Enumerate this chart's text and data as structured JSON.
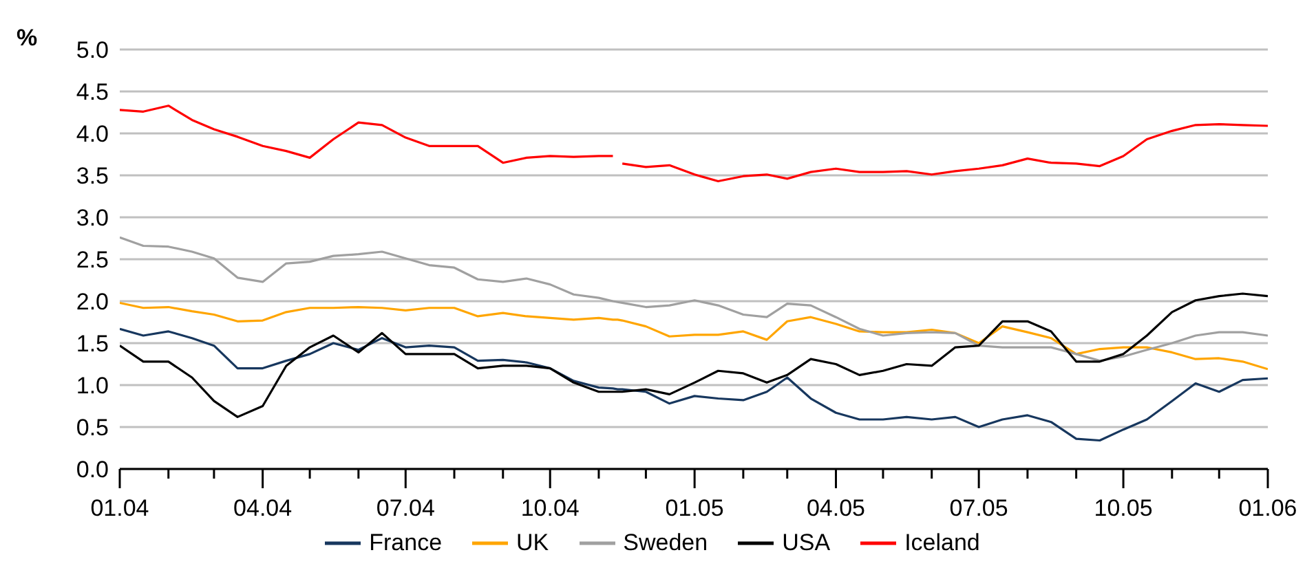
{
  "chart_data": {
    "type": "line",
    "ylabel": "%",
    "legend": "bottom",
    "grid": "y",
    "marker": "none",
    "line_style": "solid",
    "x": [
      "2004-01-01",
      "2004-01-16",
      "2004-02-01",
      "2004-02-16",
      "2004-03-01",
      "2004-03-16",
      "2004-04-01",
      "2004-04-16",
      "2004-05-01",
      "2004-05-16",
      "2004-06-01",
      "2004-06-16",
      "2004-07-01",
      "2004-07-16",
      "2004-08-01",
      "2004-08-16",
      "2004-09-01",
      "2004-09-16",
      "2004-10-01",
      "2004-10-16",
      "2004-11-01",
      "2004-11-10",
      "2004-11-13",
      "2004-11-16",
      "2004-12-01",
      "2004-12-16",
      "2005-01-01",
      "2005-01-16",
      "2005-02-01",
      "2005-02-16",
      "2005-03-01",
      "2005-03-16",
      "2005-04-01",
      "2005-04-16",
      "2005-05-01",
      "2005-05-16",
      "2005-06-01",
      "2005-06-16",
      "2005-07-01",
      "2005-07-16",
      "2005-08-01",
      "2005-08-16",
      "2005-09-01",
      "2005-09-16",
      "2005-10-01",
      "2005-10-16",
      "2005-11-01",
      "2005-11-16",
      "2005-12-01",
      "2005-12-16",
      "2006-01-01"
    ],
    "series": [
      {
        "name": "France",
        "color": "#17375e",
        "values": [
          1.67,
          1.59,
          1.64,
          1.56,
          1.47,
          1.2,
          1.2,
          1.29,
          1.37,
          1.5,
          1.42,
          1.56,
          1.45,
          1.47,
          1.45,
          1.29,
          1.3,
          1.27,
          1.2,
          1.05,
          0.97,
          0.96,
          0.95,
          0.95,
          0.92,
          0.78,
          0.87,
          0.84,
          0.82,
          0.92,
          1.09,
          0.84,
          0.67,
          0.59,
          0.59,
          0.62,
          0.59,
          0.62,
          0.5,
          0.59,
          0.64,
          0.56,
          0.36,
          0.34,
          0.47,
          0.59,
          0.81,
          1.02,
          0.92,
          1.06,
          1.08
        ]
      },
      {
        "name": "UK",
        "color": "#ffa500",
        "values": [
          1.98,
          1.92,
          1.93,
          1.88,
          1.84,
          1.76,
          1.77,
          1.87,
          1.92,
          1.92,
          1.93,
          1.92,
          1.89,
          1.92,
          1.92,
          1.82,
          1.86,
          1.82,
          1.8,
          1.78,
          1.8,
          1.78,
          1.78,
          1.77,
          1.7,
          1.58,
          1.6,
          1.6,
          1.64,
          1.54,
          1.76,
          1.81,
          1.73,
          1.64,
          1.63,
          1.63,
          1.66,
          1.62,
          1.5,
          1.7,
          1.63,
          1.56,
          1.37,
          1.43,
          1.45,
          1.45,
          1.39,
          1.31,
          1.32,
          1.28,
          1.19
        ]
      },
      {
        "name": "Sweden",
        "color": "#a0a0a0",
        "values": [
          2.76,
          2.66,
          2.65,
          2.59,
          2.51,
          2.28,
          2.23,
          2.45,
          2.47,
          2.54,
          2.56,
          2.59,
          2.51,
          2.43,
          2.4,
          2.26,
          2.23,
          2.27,
          2.2,
          2.08,
          2.04,
          2.0,
          1.99,
          1.98,
          1.93,
          1.95,
          2.01,
          1.95,
          1.84,
          1.81,
          1.97,
          1.95,
          1.81,
          1.67,
          1.59,
          1.62,
          1.63,
          1.62,
          1.47,
          1.45,
          1.45,
          1.45,
          1.37,
          1.29,
          1.34,
          1.42,
          1.5,
          1.59,
          1.63,
          1.63,
          1.59
        ]
      },
      {
        "name": "USA",
        "color": "#000000",
        "values": [
          1.47,
          1.28,
          1.28,
          1.09,
          0.81,
          0.62,
          0.75,
          1.23,
          1.45,
          1.59,
          1.39,
          1.62,
          1.37,
          1.37,
          1.37,
          1.2,
          1.23,
          1.23,
          1.2,
          1.03,
          0.92,
          0.92,
          0.92,
          0.92,
          0.95,
          0.89,
          1.03,
          1.17,
          1.14,
          1.03,
          1.12,
          1.31,
          1.25,
          1.12,
          1.17,
          1.25,
          1.23,
          1.45,
          1.47,
          1.76,
          1.76,
          1.64,
          1.28,
          1.28,
          1.37,
          1.59,
          1.87,
          2.01,
          2.06,
          2.09,
          2.06
        ]
      },
      {
        "name": "Iceland",
        "color": "#ff0000",
        "values": [
          4.28,
          4.26,
          4.33,
          4.16,
          4.05,
          3.96,
          3.85,
          3.79,
          3.71,
          3.93,
          4.13,
          4.1,
          3.95,
          3.85,
          3.85,
          3.85,
          3.65,
          3.71,
          3.73,
          3.72,
          3.73,
          3.73,
          null,
          3.64,
          3.6,
          3.62,
          3.51,
          3.43,
          3.49,
          3.51,
          3.46,
          3.54,
          3.58,
          3.54,
          3.54,
          3.55,
          3.51,
          3.55,
          3.58,
          3.62,
          3.7,
          3.65,
          3.64,
          3.61,
          3.73,
          3.93,
          4.03,
          4.1,
          4.11,
          4.1,
          4.09
        ]
      }
    ],
    "xlim": [
      "2004-01-01",
      "2006-01-01"
    ],
    "xticks": [
      {
        "value": "2004-01-01",
        "label": "01.04"
      },
      {
        "value": "2004-02-01",
        "label": null
      },
      {
        "value": "2004-03-01",
        "label": null
      },
      {
        "value": "2004-04-01",
        "label": "04.04"
      },
      {
        "value": "2004-05-01",
        "label": null
      },
      {
        "value": "2004-06-01",
        "label": null
      },
      {
        "value": "2004-07-01",
        "label": "07.04"
      },
      {
        "value": "2004-08-01",
        "label": null
      },
      {
        "value": "2004-09-01",
        "label": null
      },
      {
        "value": "2004-10-01",
        "label": "10.04"
      },
      {
        "value": "2004-11-01",
        "label": null
      },
      {
        "value": "2004-12-01",
        "label": null
      },
      {
        "value": "2005-01-01",
        "label": "01.05"
      },
      {
        "value": "2005-02-01",
        "label": null
      },
      {
        "value": "2005-03-01",
        "label": null
      },
      {
        "value": "2005-04-01",
        "label": "04.05"
      },
      {
        "value": "2005-05-01",
        "label": null
      },
      {
        "value": "2005-06-01",
        "label": null
      },
      {
        "value": "2005-07-01",
        "label": "07.05"
      },
      {
        "value": "2005-08-01",
        "label": null
      },
      {
        "value": "2005-09-01",
        "label": null
      },
      {
        "value": "2005-10-01",
        "label": "10.05"
      },
      {
        "value": "2005-11-01",
        "label": null
      },
      {
        "value": "2005-12-01",
        "label": null
      },
      {
        "value": "2006-01-01",
        "label": "01.06"
      }
    ],
    "ylim": [
      0,
      5
    ],
    "yticks": [
      {
        "value": 0,
        "label": "0.0"
      },
      {
        "value": 0.5,
        "label": "0.5"
      },
      {
        "value": 1,
        "label": "1.0"
      },
      {
        "value": 1.5,
        "label": "1.5"
      },
      {
        "value": 2,
        "label": "2.0"
      },
      {
        "value": 2.5,
        "label": "2.5"
      },
      {
        "value": 3,
        "label": "3.0"
      },
      {
        "value": 3.5,
        "label": "3.5"
      },
      {
        "value": 4,
        "label": "4.0"
      },
      {
        "value": 4.5,
        "label": "4.5"
      },
      {
        "value": 5,
        "label": "5.0"
      }
    ]
  }
}
